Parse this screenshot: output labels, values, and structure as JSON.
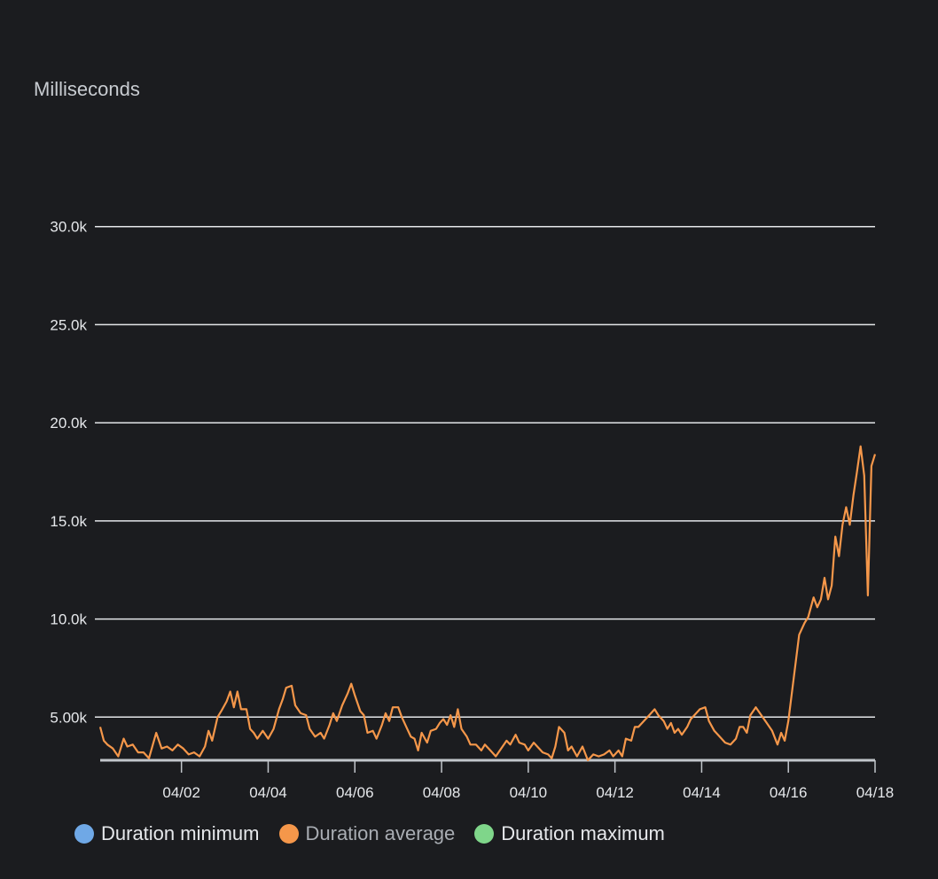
{
  "chart_data": {
    "type": "line",
    "yunit": "Milliseconds",
    "ylim": [
      2800,
      35000
    ],
    "yticks": [
      {
        "value": 5000,
        "label": "5.00k"
      },
      {
        "value": 10000,
        "label": "10.0k"
      },
      {
        "value": 15000,
        "label": "15.0k"
      },
      {
        "value": 20000,
        "label": "20.0k"
      },
      {
        "value": 25000,
        "label": "25.0k"
      },
      {
        "value": 30000,
        "label": "30.0k"
      }
    ],
    "xlim": [
      "03-31 03:00",
      "04-18 00:00"
    ],
    "xticks": [
      "04/02",
      "04/04",
      "04/06",
      "04/08",
      "04/10",
      "04/12",
      "04/14",
      "04/16",
      "04/18"
    ],
    "grid": true,
    "legend_position": "bottom-left",
    "series": [
      {
        "name": "Duration minimum",
        "color": "#6fa8e6",
        "values": []
      },
      {
        "name": "Duration maximum",
        "color": "#7fd68a",
        "values": []
      },
      {
        "name": "Duration average",
        "color": "#f5974a",
        "values": [
          [
            "03-31 03:00",
            4500
          ],
          [
            "03-31 05:00",
            3800
          ],
          [
            "03-31 07:00",
            3600
          ],
          [
            "03-31 10:00",
            3400
          ],
          [
            "03-31 13:00",
            3000
          ],
          [
            "03-31 16:00",
            3900
          ],
          [
            "03-31 18:00",
            3500
          ],
          [
            "03-31 21:00",
            3600
          ],
          [
            "04-01 00:00",
            3200
          ],
          [
            "04-01 03:00",
            3200
          ],
          [
            "04-01 06:00",
            2900
          ],
          [
            "04-01 10:00",
            4200
          ],
          [
            "04-01 13:00",
            3400
          ],
          [
            "04-01 16:00",
            3500
          ],
          [
            "04-01 19:00",
            3300
          ],
          [
            "04-01 22:00",
            3600
          ],
          [
            "04-02 01:00",
            3400
          ],
          [
            "04-02 04:00",
            3100
          ],
          [
            "04-02 07:00",
            3200
          ],
          [
            "04-02 10:00",
            3000
          ],
          [
            "04-02 13:00",
            3500
          ],
          [
            "04-02 15:00",
            4300
          ],
          [
            "04-02 17:00",
            3800
          ],
          [
            "04-02 20:00",
            5000
          ],
          [
            "04-02 22:00",
            5300
          ],
          [
            "04-03 01:00",
            5800
          ],
          [
            "04-03 03:00",
            6300
          ],
          [
            "04-03 05:00",
            5500
          ],
          [
            "04-03 07:00",
            6300
          ],
          [
            "04-03 09:00",
            5400
          ],
          [
            "04-03 12:00",
            5400
          ],
          [
            "04-03 14:00",
            4400
          ],
          [
            "04-03 16:00",
            4200
          ],
          [
            "04-03 18:00",
            3900
          ],
          [
            "04-03 21:00",
            4300
          ],
          [
            "04-04 00:00",
            3900
          ],
          [
            "04-04 03:00",
            4400
          ],
          [
            "04-04 06:00",
            5400
          ],
          [
            "04-04 08:00",
            5900
          ],
          [
            "04-04 10:00",
            6500
          ],
          [
            "04-04 13:00",
            6600
          ],
          [
            "04-04 15:00",
            5600
          ],
          [
            "04-04 18:00",
            5200
          ],
          [
            "04-04 21:00",
            5100
          ],
          [
            "04-04 23:00",
            4400
          ],
          [
            "04-05 02:00",
            4000
          ],
          [
            "04-05 05:00",
            4200
          ],
          [
            "04-05 07:00",
            3900
          ],
          [
            "04-05 10:00",
            4600
          ],
          [
            "04-05 12:00",
            5200
          ],
          [
            "04-05 14:00",
            4800
          ],
          [
            "04-05 17:00",
            5600
          ],
          [
            "04-05 20:00",
            6200
          ],
          [
            "04-05 22:00",
            6700
          ],
          [
            "04-06 00:00",
            6100
          ],
          [
            "04-06 03:00",
            5300
          ],
          [
            "04-06 05:00",
            5100
          ],
          [
            "04-06 07:00",
            4200
          ],
          [
            "04-06 10:00",
            4300
          ],
          [
            "04-06 12:00",
            3900
          ],
          [
            "04-06 15:00",
            4600
          ],
          [
            "04-06 17:00",
            5200
          ],
          [
            "04-06 19:00",
            4800
          ],
          [
            "04-06 21:00",
            5500
          ],
          [
            "04-07 00:00",
            5500
          ],
          [
            "04-07 02:00",
            5000
          ],
          [
            "04-07 05:00",
            4400
          ],
          [
            "04-07 07:00",
            4000
          ],
          [
            "04-07 09:00",
            3900
          ],
          [
            "04-07 11:00",
            3300
          ],
          [
            "04-07 13:00",
            4200
          ],
          [
            "04-07 16:00",
            3700
          ],
          [
            "04-07 18:00",
            4300
          ],
          [
            "04-07 21:00",
            4400
          ],
          [
            "04-07 23:00",
            4700
          ],
          [
            "04-08 01:00",
            4900
          ],
          [
            "04-08 03:00",
            4600
          ],
          [
            "04-08 05:00",
            5100
          ],
          [
            "04-08 07:00",
            4500
          ],
          [
            "04-08 09:00",
            5400
          ],
          [
            "04-08 11:00",
            4400
          ],
          [
            "04-08 14:00",
            4000
          ],
          [
            "04-08 16:00",
            3600
          ],
          [
            "04-08 19:00",
            3600
          ],
          [
            "04-08 22:00",
            3300
          ],
          [
            "04-09 00:00",
            3600
          ],
          [
            "04-09 03:00",
            3300
          ],
          [
            "04-09 06:00",
            3000
          ],
          [
            "04-09 09:00",
            3400
          ],
          [
            "04-09 12:00",
            3800
          ],
          [
            "04-09 14:00",
            3600
          ],
          [
            "04-09 17:00",
            4100
          ],
          [
            "04-09 19:00",
            3700
          ],
          [
            "04-09 22:00",
            3600
          ],
          [
            "04-10 00:00",
            3300
          ],
          [
            "04-10 03:00",
            3700
          ],
          [
            "04-10 06:00",
            3400
          ],
          [
            "04-10 08:00",
            3200
          ],
          [
            "04-10 11:00",
            3100
          ],
          [
            "04-10 13:00",
            2900
          ],
          [
            "04-10 15:00",
            3500
          ],
          [
            "04-10 17:00",
            4500
          ],
          [
            "04-10 20:00",
            4200
          ],
          [
            "04-10 22:00",
            3300
          ],
          [
            "04-11 00:00",
            3500
          ],
          [
            "04-11 03:00",
            3000
          ],
          [
            "04-11 06:00",
            3500
          ],
          [
            "04-11 09:00",
            2800
          ],
          [
            "04-11 12:00",
            3100
          ],
          [
            "04-11 15:00",
            3000
          ],
          [
            "04-11 18:00",
            3100
          ],
          [
            "04-11 21:00",
            3300
          ],
          [
            "04-11 23:00",
            3000
          ],
          [
            "04-12 02:00",
            3300
          ],
          [
            "04-12 04:00",
            3000
          ],
          [
            "04-12 06:00",
            3900
          ],
          [
            "04-12 09:00",
            3800
          ],
          [
            "04-12 11:00",
            4500
          ],
          [
            "04-12 13:00",
            4500
          ],
          [
            "04-12 16:00",
            4800
          ],
          [
            "04-12 19:00",
            5100
          ],
          [
            "04-12 22:00",
            5400
          ],
          [
            "04-13 00:00",
            5100
          ],
          [
            "04-13 03:00",
            4800
          ],
          [
            "04-13 05:00",
            4400
          ],
          [
            "04-13 07:00",
            4700
          ],
          [
            "04-13 09:00",
            4200
          ],
          [
            "04-13 11:00",
            4400
          ],
          [
            "04-13 13:00",
            4100
          ],
          [
            "04-13 16:00",
            4500
          ],
          [
            "04-13 18:00",
            4900
          ],
          [
            "04-13 21:00",
            5200
          ],
          [
            "04-13 23:00",
            5400
          ],
          [
            "04-14 02:00",
            5500
          ],
          [
            "04-14 04:00",
            4800
          ],
          [
            "04-14 07:00",
            4300
          ],
          [
            "04-14 10:00",
            4000
          ],
          [
            "04-14 13:00",
            3700
          ],
          [
            "04-14 16:00",
            3600
          ],
          [
            "04-14 19:00",
            3900
          ],
          [
            "04-14 21:00",
            4500
          ],
          [
            "04-14 23:00",
            4500
          ],
          [
            "04-15 01:00",
            4200
          ],
          [
            "04-15 03:00",
            5100
          ],
          [
            "04-15 06:00",
            5500
          ],
          [
            "04-15 09:00",
            5100
          ],
          [
            "04-15 12:00",
            4700
          ],
          [
            "04-15 15:00",
            4300
          ],
          [
            "04-15 18:00",
            3600
          ],
          [
            "04-15 20:00",
            4200
          ],
          [
            "04-15 22:00",
            3800
          ],
          [
            "04-16 00:00",
            4800
          ],
          [
            "04-16 03:00",
            7000
          ],
          [
            "04-16 06:00",
            9200
          ],
          [
            "04-16 09:00",
            9800
          ],
          [
            "04-16 11:00",
            10100
          ],
          [
            "04-16 14:00",
            11100
          ],
          [
            "04-16 16:00",
            10600
          ],
          [
            "04-16 18:00",
            11000
          ],
          [
            "04-16 20:00",
            12100
          ],
          [
            "04-16 22:00",
            11000
          ],
          [
            "04-17 00:00",
            11700
          ],
          [
            "04-17 02:00",
            14200
          ],
          [
            "04-17 04:00",
            13200
          ],
          [
            "04-17 06:00",
            14800
          ],
          [
            "04-17 08:00",
            15700
          ],
          [
            "04-17 10:00",
            14800
          ],
          [
            "04-17 12:00",
            16300
          ],
          [
            "04-17 14:00",
            17500
          ],
          [
            "04-17 16:00",
            18800
          ],
          [
            "04-17 18:00",
            17300
          ],
          [
            "04-17 20:00",
            11200
          ],
          [
            "04-17 22:00",
            17800
          ],
          [
            "04-18 00:00",
            18400
          ]
        ]
      }
    ]
  }
}
